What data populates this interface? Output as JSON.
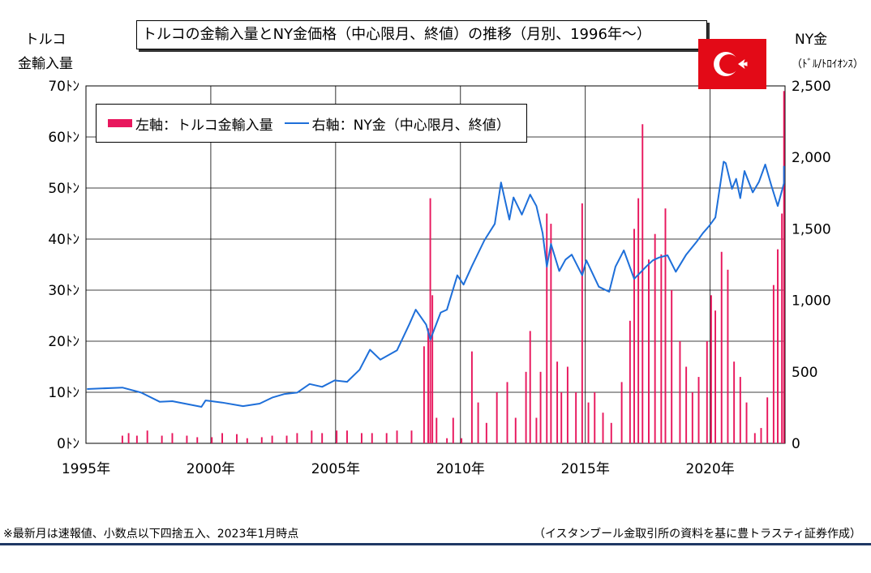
{
  "title": "トルコの金輸入量とNY金価格（中心限月、終値）の推移（月別、1996年～）",
  "left_axis_title": [
    "トルコ",
    "金輸入量"
  ],
  "right_axis_title": "NY金",
  "right_axis_unit": "（ﾄﾞﾙ/ﾄﾛｲｵﾝｽ）",
  "legend": {
    "bar_label": "左軸：トルコ金輸入量",
    "line_label": "右軸：NY金（中心限月、終値）"
  },
  "footer_left": "※最新月は速報値、小数点以下四捨五入、2023年1月時点",
  "footer_right": "（イスタンブール金取引所の資料を基に豊トラスティ証券作成）",
  "flag_icon": "turkey-flag-icon",
  "colors": {
    "bar": "#e8175d",
    "line": "#1e6fd9",
    "flag": "#e30a17"
  },
  "chart_data": {
    "type": "bar+line",
    "x_range": [
      "1995-01",
      "2022-12"
    ],
    "x_ticks": [
      "1995年",
      "2000年",
      "2005年",
      "2010年",
      "2015年",
      "2020年"
    ],
    "left_axis": {
      "ylim": [
        0,
        70
      ],
      "ticks": [
        "0ﾄﾝ",
        "10ﾄﾝ",
        "20ﾄﾝ",
        "30ﾄﾝ",
        "40ﾄﾝ",
        "50ﾄﾝ",
        "60ﾄﾝ",
        "70ﾄﾝ"
      ]
    },
    "right_axis": {
      "ylim": [
        0,
        2500
      ],
      "ticks": [
        "0",
        "500",
        "1,000",
        "1,500",
        "2,000",
        "2,500"
      ]
    },
    "grid": true,
    "legend_position": "top-left",
    "series": [
      {
        "name": "左軸：トルコ金輸入量",
        "type": "bar",
        "axis": "left",
        "points": [
          [
            "1996-06",
            1.5
          ],
          [
            "1996-09",
            2.0
          ],
          [
            "1997-01",
            1.5
          ],
          [
            "1997-06",
            2.5
          ],
          [
            "1998-01",
            1.5
          ],
          [
            "1998-06",
            2.0
          ],
          [
            "1999-01",
            1.5
          ],
          [
            "1999-06",
            1.2
          ],
          [
            "2000-01",
            1.2
          ],
          [
            "2000-06",
            2.0
          ],
          [
            "2001-01",
            1.8
          ],
          [
            "2001-06",
            1.0
          ],
          [
            "2002-01",
            1.2
          ],
          [
            "2002-06",
            1.5
          ],
          [
            "2003-01",
            1.5
          ],
          [
            "2003-06",
            2.0
          ],
          [
            "2004-01",
            2.5
          ],
          [
            "2004-06",
            2.0
          ],
          [
            "2005-01",
            2.5
          ],
          [
            "2005-06",
            2.5
          ],
          [
            "2006-01",
            2.0
          ],
          [
            "2006-06",
            2.0
          ],
          [
            "2007-01",
            2.0
          ],
          [
            "2007-06",
            2.5
          ],
          [
            "2008-01",
            2.5
          ],
          [
            "2008-07",
            19.0
          ],
          [
            "2008-09",
            22.5
          ],
          [
            "2008-10",
            48.0
          ],
          [
            "2008-11",
            29.0
          ],
          [
            "2009-01",
            5.0
          ],
          [
            "2009-06",
            1.0
          ],
          [
            "2009-09",
            5.0
          ],
          [
            "2010-01",
            1.0
          ],
          [
            "2010-06",
            18.0
          ],
          [
            "2010-09",
            8.0
          ],
          [
            "2011-01",
            4.0
          ],
          [
            "2011-06",
            10.0
          ],
          [
            "2011-11",
            12.0
          ],
          [
            "2012-03",
            5.0
          ],
          [
            "2012-08",
            14.0
          ],
          [
            "2012-10",
            22.0
          ],
          [
            "2013-01",
            5.0
          ],
          [
            "2013-03",
            14.0
          ],
          [
            "2013-06",
            45.0
          ],
          [
            "2013-08",
            43.0
          ],
          [
            "2013-11",
            16.0
          ],
          [
            "2014-01",
            10.0
          ],
          [
            "2014-04",
            15.0
          ],
          [
            "2014-08",
            10.0
          ],
          [
            "2014-11",
            47.0
          ],
          [
            "2015-02",
            8.0
          ],
          [
            "2015-05",
            10.0
          ],
          [
            "2015-09",
            6.0
          ],
          [
            "2016-01",
            4.0
          ],
          [
            "2016-06",
            12.0
          ],
          [
            "2016-10",
            24.0
          ],
          [
            "2016-12",
            42.0
          ],
          [
            "2017-02",
            48.0
          ],
          [
            "2017-04",
            62.5
          ],
          [
            "2017-07",
            36.0
          ],
          [
            "2017-10",
            41.0
          ],
          [
            "2018-01",
            37.0
          ],
          [
            "2018-03",
            46.0
          ],
          [
            "2018-06",
            30.0
          ],
          [
            "2018-10",
            20.0
          ],
          [
            "2019-01",
            15.0
          ],
          [
            "2019-04",
            10.0
          ],
          [
            "2019-07",
            13.0
          ],
          [
            "2019-11",
            20.0
          ],
          [
            "2020-01",
            29.0
          ],
          [
            "2020-03",
            26.0
          ],
          [
            "2020-06",
            37.5
          ],
          [
            "2020-09",
            34.0
          ],
          [
            "2020-12",
            16.0
          ],
          [
            "2021-03",
            13.0
          ],
          [
            "2021-06",
            8.0
          ],
          [
            "2021-10",
            2.0
          ],
          [
            "2022-01",
            3.0
          ],
          [
            "2022-04",
            9.0
          ],
          [
            "2022-07",
            31.0
          ],
          [
            "2022-09",
            38.0
          ],
          [
            "2022-11",
            45.0
          ],
          [
            "2022-12",
            69.0
          ]
        ]
      },
      {
        "name": "右軸：NY金（中心限月、終値）",
        "type": "line",
        "axis": "right",
        "points": [
          [
            "1995-01",
            380
          ],
          [
            "1996-06",
            390
          ],
          [
            "1997-03",
            355
          ],
          [
            "1997-12",
            290
          ],
          [
            "1998-06",
            295
          ],
          [
            "1999-08",
            255
          ],
          [
            "1999-10",
            300
          ],
          [
            "2000-06",
            285
          ],
          [
            "2001-04",
            260
          ],
          [
            "2001-12",
            278
          ],
          [
            "2002-06",
            320
          ],
          [
            "2002-12",
            345
          ],
          [
            "2003-06",
            355
          ],
          [
            "2003-12",
            415
          ],
          [
            "2004-06",
            395
          ],
          [
            "2004-12",
            440
          ],
          [
            "2005-06",
            430
          ],
          [
            "2005-12",
            515
          ],
          [
            "2006-05",
            655
          ],
          [
            "2006-10",
            585
          ],
          [
            "2007-06",
            650
          ],
          [
            "2007-12",
            835
          ],
          [
            "2008-03",
            935
          ],
          [
            "2008-08",
            830
          ],
          [
            "2008-10",
            725
          ],
          [
            "2009-03",
            915
          ],
          [
            "2009-06",
            935
          ],
          [
            "2009-11",
            1175
          ],
          [
            "2010-02",
            1110
          ],
          [
            "2010-06",
            1240
          ],
          [
            "2010-12",
            1420
          ],
          [
            "2011-05",
            1535
          ],
          [
            "2011-08",
            1825
          ],
          [
            "2011-12",
            1565
          ],
          [
            "2012-02",
            1720
          ],
          [
            "2012-06",
            1600
          ],
          [
            "2012-10",
            1740
          ],
          [
            "2013-01",
            1660
          ],
          [
            "2013-04",
            1470
          ],
          [
            "2013-06",
            1235
          ],
          [
            "2013-08",
            1395
          ],
          [
            "2013-12",
            1205
          ],
          [
            "2014-03",
            1285
          ],
          [
            "2014-06",
            1320
          ],
          [
            "2014-11",
            1175
          ],
          [
            "2015-01",
            1280
          ],
          [
            "2015-07",
            1095
          ],
          [
            "2015-12",
            1060
          ],
          [
            "2016-03",
            1235
          ],
          [
            "2016-07",
            1350
          ],
          [
            "2016-12",
            1150
          ],
          [
            "2017-06",
            1240
          ],
          [
            "2017-09",
            1280
          ],
          [
            "2017-12",
            1300
          ],
          [
            "2018-04",
            1315
          ],
          [
            "2018-08",
            1200
          ],
          [
            "2019-01",
            1320
          ],
          [
            "2019-06",
            1410
          ],
          [
            "2019-09",
            1470
          ],
          [
            "2019-12",
            1520
          ],
          [
            "2020-03",
            1580
          ],
          [
            "2020-07",
            1970
          ],
          [
            "2020-08",
            1960
          ],
          [
            "2020-11",
            1780
          ],
          [
            "2021-01",
            1850
          ],
          [
            "2021-03",
            1715
          ],
          [
            "2021-05",
            1905
          ],
          [
            "2021-09",
            1755
          ],
          [
            "2021-12",
            1830
          ],
          [
            "2022-03",
            1950
          ],
          [
            "2022-06",
            1800
          ],
          [
            "2022-09",
            1660
          ],
          [
            "2022-12",
            1820
          ],
          [
            "2022-12",
            1940
          ]
        ]
      }
    ]
  }
}
